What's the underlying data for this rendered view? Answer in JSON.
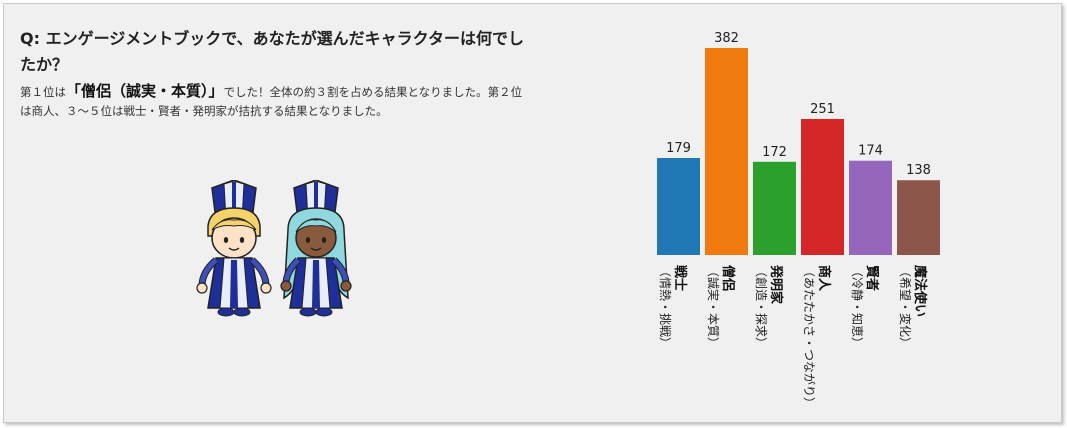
{
  "question": "Q: エンゲージメントブックで、あなたが選んだキャラクターは何でしたか？",
  "description": {
    "p1_before": "第１位は",
    "p1_highlight": "「僧侶（誠実・本質）」",
    "p1_after": "でした！全体の約３割を占める結果となりました。第２位は商人、３～５位は戦士・賢者・発明家が拮抗する結果となりました。"
  },
  "chart_data": {
    "type": "bar",
    "categories": [
      "戦士",
      "僧侶",
      "発明家",
      "商人",
      "賢者",
      "魔法使い"
    ],
    "category_subtitles": [
      "（情熱・挑戦）",
      "（誠実・本質）",
      "（創造・探求）",
      "（あたたかさ・つながり）",
      "（冷静・知恵）",
      "（希望・変化）"
    ],
    "values": [
      179,
      382,
      172,
      251,
      174,
      138
    ],
    "colors": [
      "#1f77b4",
      "#f07a10",
      "#2ca02c",
      "#d62728",
      "#9467bd",
      "#8c564b"
    ],
    "ylim": [
      0,
      382
    ],
    "grid": false,
    "title": "",
    "xlabel": "",
    "ylabel": ""
  }
}
